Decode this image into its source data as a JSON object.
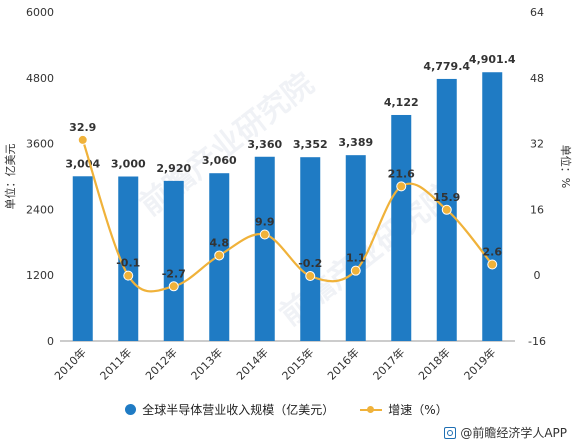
{
  "chart_data": {
    "type": "bar",
    "categories": [
      "2010年",
      "2011年",
      "2012年",
      "2013年",
      "2014年",
      "2015年",
      "2016年",
      "2017年",
      "2018年",
      "2019年"
    ],
    "series": [
      {
        "name": "全球半导体营业收入规模（亿美元）",
        "type": "bar",
        "axis": "left",
        "color": "#1f7bc4",
        "values": [
          3004,
          3000,
          2920,
          3060,
          3360,
          3352,
          3389,
          4122,
          4779.4,
          4901.4
        ],
        "labels": [
          "3,004",
          "3,000",
          "2,920",
          "3,060",
          "3,360",
          "3,352",
          "3,389",
          "4,122",
          "4,779.4",
          "4,901.4"
        ]
      },
      {
        "name": "增速（%）",
        "type": "line",
        "axis": "right",
        "color": "#f0b23a",
        "values": [
          32.9,
          -0.1,
          -2.7,
          4.8,
          9.9,
          -0.2,
          1.1,
          21.6,
          15.9,
          2.6
        ],
        "labels": [
          "32.9",
          "-0.1",
          "-2.7",
          "4.8",
          "9.9",
          "-0.2",
          "1.1",
          "21.6",
          "15.9",
          "2.6"
        ]
      }
    ],
    "ylabel": "单位：亿美元",
    "y2label": "单位：%",
    "ylim": [
      0,
      6000
    ],
    "y2lim": [
      -16,
      64
    ],
    "yticks": [
      "0",
      "1200",
      "2400",
      "3600",
      "4800",
      "6000"
    ],
    "y2ticks": [
      "-16",
      "0",
      "16",
      "32",
      "48",
      "64"
    ],
    "grid": false,
    "legend_position": "bottom"
  },
  "source": {
    "text": "@前瞻经济学人APP",
    "icon": "app-logo-icon"
  },
  "watermark": {
    "text": "前瞻产业研究院"
  }
}
